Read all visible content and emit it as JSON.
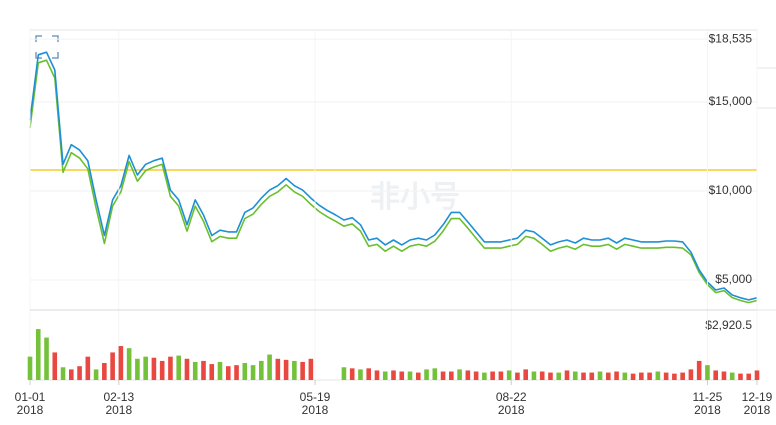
{
  "watermark": "非小号",
  "chart_data": [
    {
      "type": "line",
      "x": [
        "2018-01-01",
        "2018-01-05",
        "2018-01-09",
        "2018-01-13",
        "2018-01-17",
        "2018-01-21",
        "2018-01-25",
        "2018-01-29",
        "2018-02-02",
        "2018-02-06",
        "2018-02-10",
        "2018-02-14",
        "2018-02-18",
        "2018-02-22",
        "2018-02-26",
        "2018-03-02",
        "2018-03-06",
        "2018-03-10",
        "2018-03-14",
        "2018-03-18",
        "2018-03-22",
        "2018-03-26",
        "2018-03-30",
        "2018-04-03",
        "2018-04-07",
        "2018-04-11",
        "2018-04-15",
        "2018-04-19",
        "2018-04-23",
        "2018-04-27",
        "2018-05-01",
        "2018-05-05",
        "2018-05-09",
        "2018-05-13",
        "2018-05-17",
        "2018-05-21",
        "2018-05-25",
        "2018-05-29",
        "2018-06-02",
        "2018-06-06",
        "2018-06-10",
        "2018-06-14",
        "2018-06-18",
        "2018-06-22",
        "2018-06-26",
        "2018-06-30",
        "2018-07-04",
        "2018-07-08",
        "2018-07-12",
        "2018-07-16",
        "2018-07-20",
        "2018-07-24",
        "2018-07-28",
        "2018-08-01",
        "2018-08-05",
        "2018-08-09",
        "2018-08-13",
        "2018-08-17",
        "2018-08-21",
        "2018-08-25",
        "2018-08-29",
        "2018-09-02",
        "2018-09-06",
        "2018-09-10",
        "2018-09-14",
        "2018-09-18",
        "2018-09-22",
        "2018-09-26",
        "2018-09-30",
        "2018-10-04",
        "2018-10-08",
        "2018-10-12",
        "2018-10-16",
        "2018-10-20",
        "2018-10-24",
        "2018-10-28",
        "2018-11-01",
        "2018-11-05",
        "2018-11-09",
        "2018-11-13",
        "2018-11-17",
        "2018-11-21",
        "2018-11-25",
        "2018-11-29",
        "2018-12-03",
        "2018-12-07",
        "2018-12-11",
        "2018-12-15",
        "2018-12-19"
      ],
      "xlim": [
        "2018-01-01",
        "2018-12-19"
      ],
      "series": [
        {
          "color": "#1e8fd5",
          "values": [
            14000,
            17650,
            17800,
            16800,
            11500,
            12600,
            12300,
            11700,
            9500,
            7500,
            9500,
            10300,
            12000,
            10900,
            11500,
            11700,
            11850,
            10050,
            9500,
            8100,
            9500,
            8650,
            7500,
            7800,
            7700,
            7700,
            8800,
            9050,
            9600,
            10050,
            10300,
            10700,
            10300,
            10050,
            9600,
            9200,
            8900,
            8650,
            8370,
            8500,
            8100,
            7250,
            7350,
            6970,
            7250,
            6970,
            7250,
            7350,
            7250,
            7530,
            8100,
            8800,
            8800,
            8260,
            7700,
            7140,
            7140,
            7140,
            7250,
            7350,
            7800,
            7700,
            7350,
            6970,
            7140,
            7250,
            7080,
            7350,
            7250,
            7250,
            7350,
            7080,
            7350,
            7250,
            7140,
            7140,
            7140,
            7190,
            7190,
            7140,
            6570,
            5560,
            4890,
            4440,
            4550,
            4160,
            4000,
            3880,
            4000
          ]
        },
        {
          "color": "#6abf2e",
          "values": [
            13550,
            17200,
            17350,
            16350,
            11050,
            12150,
            11850,
            11250,
            9050,
            7050,
            9150,
            9950,
            11650,
            10550,
            11150,
            11350,
            11500,
            9700,
            9150,
            7750,
            9150,
            8300,
            7150,
            7450,
            7350,
            7350,
            8450,
            8700,
            9250,
            9700,
            9950,
            10350,
            9950,
            9700,
            9250,
            8850,
            8550,
            8300,
            8020,
            8150,
            7750,
            6900,
            7000,
            6620,
            6900,
            6620,
            6900,
            7000,
            6900,
            7180,
            7750,
            8450,
            8450,
            7910,
            7350,
            6790,
            6790,
            6790,
            6900,
            7000,
            7450,
            7350,
            7000,
            6620,
            6790,
            6900,
            6730,
            7000,
            6900,
            6900,
            7000,
            6730,
            7000,
            6900,
            6790,
            6790,
            6790,
            6840,
            6840,
            6790,
            6420,
            5410,
            4740,
            4290,
            4400,
            4010,
            3850,
            3730,
            3850
          ]
        }
      ],
      "hline": {
        "value": 11180,
        "color": "#f5c400"
      },
      "ylim": [
        3315,
        19045
      ],
      "yticks": [
        {
          "value": 5000,
          "label": "$5,000"
        },
        {
          "value": 10000,
          "label": "$10,000"
        },
        {
          "value": 15000,
          "label": "$15,000"
        },
        {
          "value": 18535,
          "label": "$18,535"
        }
      ],
      "grid": true
    },
    {
      "type": "bar",
      "x": [
        "2018-01-01",
        "2018-01-05",
        "2018-01-09",
        "2018-01-13",
        "2018-01-17",
        "2018-01-21",
        "2018-01-25",
        "2018-01-29",
        "2018-02-02",
        "2018-02-06",
        "2018-02-10",
        "2018-02-14",
        "2018-02-18",
        "2018-02-22",
        "2018-02-26",
        "2018-03-02",
        "2018-03-06",
        "2018-03-10",
        "2018-03-14",
        "2018-03-18",
        "2018-03-22",
        "2018-03-26",
        "2018-03-30",
        "2018-04-03",
        "2018-04-07",
        "2018-04-11",
        "2018-04-15",
        "2018-04-19",
        "2018-04-23",
        "2018-04-27",
        "2018-05-01",
        "2018-05-05",
        "2018-05-09",
        "2018-05-13",
        "2018-05-17",
        "2018-05-21",
        "2018-05-25",
        "2018-05-29",
        "2018-06-02",
        "2018-06-06",
        "2018-06-10",
        "2018-06-14",
        "2018-06-18",
        "2018-06-22",
        "2018-06-26",
        "2018-06-30",
        "2018-07-04",
        "2018-07-08",
        "2018-07-12",
        "2018-07-16",
        "2018-07-20",
        "2018-07-24",
        "2018-07-28",
        "2018-08-01",
        "2018-08-05",
        "2018-08-09",
        "2018-08-13",
        "2018-08-17",
        "2018-08-21",
        "2018-08-25",
        "2018-08-29",
        "2018-09-02",
        "2018-09-06",
        "2018-09-10",
        "2018-09-14",
        "2018-09-18",
        "2018-09-22",
        "2018-09-26",
        "2018-09-30",
        "2018-10-04",
        "2018-10-08",
        "2018-10-12",
        "2018-10-16",
        "2018-10-20",
        "2018-10-24",
        "2018-10-28",
        "2018-11-01",
        "2018-11-05",
        "2018-11-09",
        "2018-11-13",
        "2018-11-17",
        "2018-11-21",
        "2018-11-25",
        "2018-11-29",
        "2018-12-03",
        "2018-12-07",
        "2018-12-11",
        "2018-12-15",
        "2018-12-19"
      ],
      "xlim": [
        "2018-01-01",
        "2018-12-19"
      ],
      "values": [
        1100,
        2400,
        2000,
        1300,
        600,
        500,
        650,
        1100,
        500,
        800,
        1300,
        1600,
        1500,
        1000,
        1100,
        1050,
        900,
        1100,
        1150,
        1000,
        850,
        900,
        750,
        850,
        650,
        700,
        800,
        700,
        900,
        1200,
        1000,
        950,
        900,
        850,
        1000,
        null,
        null,
        null,
        600,
        550,
        500,
        550,
        450,
        400,
        450,
        400,
        400,
        350,
        500,
        550,
        400,
        400,
        500,
        450,
        400,
        350,
        400,
        400,
        450,
        350,
        500,
        400,
        400,
        350,
        350,
        450,
        400,
        350,
        350,
        400,
        350,
        400,
        350,
        300,
        350,
        350,
        400,
        350,
        300,
        350,
        500,
        900,
        700,
        450,
        400,
        350,
        300,
        300,
        450
      ],
      "colors": [
        "#73c23a",
        "#73c23a",
        "#73c23a",
        "#e8483f",
        "#73c23a",
        "#e8483f",
        "#e8483f",
        "#e8483f",
        "#73c23a",
        "#e8483f",
        "#e8483f",
        "#e8483f",
        "#73c23a",
        "#73c23a",
        "#73c23a",
        "#e8483f",
        "#e8483f",
        "#e8483f",
        "#73c23a",
        "#e8483f",
        "#73c23a",
        "#e8483f",
        "#e8483f",
        "#73c23a",
        "#e8483f",
        "#e8483f",
        "#73c23a",
        "#73c23a",
        "#73c23a",
        "#73c23a",
        "#e8483f",
        "#e8483f",
        "#73c23a",
        "#e8483f",
        "#e8483f",
        null,
        null,
        null,
        "#73c23a",
        "#e8483f",
        "#73c23a",
        "#e8483f",
        "#e8483f",
        "#73c23a",
        "#e8483f",
        "#e8483f",
        "#73c23a",
        "#e8483f",
        "#73c23a",
        "#73c23a",
        "#e8483f",
        "#e8483f",
        "#73c23a",
        "#e8483f",
        "#e8483f",
        "#73c23a",
        "#e8483f",
        "#e8483f",
        "#73c23a",
        "#e8483f",
        "#e8483f",
        "#73c23a",
        "#e8483f",
        "#e8483f",
        "#73c23a",
        "#e8483f",
        "#73c23a",
        "#e8483f",
        "#e8483f",
        "#73c23a",
        "#e8483f",
        "#e8483f",
        "#73c23a",
        "#e8483f",
        "#e8483f",
        "#e8483f",
        "#73c23a",
        "#e8483f",
        "#e8483f",
        "#e8483f",
        "#e8483f",
        "#e8483f",
        "#73c23a",
        "#e8483f",
        "#e8483f",
        "#73c23a",
        "#e8483f",
        "#e8483f",
        "#e8483f"
      ],
      "ylim": [
        0,
        3300
      ],
      "yticks": [
        {
          "value": 2920.5,
          "label": "$2,920.5"
        }
      ],
      "xticks": [
        {
          "value": "2018-01-01",
          "label": [
            "01-01",
            "2018"
          ]
        },
        {
          "value": "2018-02-13",
          "label": [
            "02-13",
            "2018"
          ]
        },
        {
          "value": "2018-05-19",
          "label": [
            "05-19",
            "2018"
          ]
        },
        {
          "value": "2018-08-22",
          "label": [
            "08-22",
            "2018"
          ]
        },
        {
          "value": "2018-11-25",
          "label": [
            "11-25",
            "2018"
          ]
        },
        {
          "value": "2018-12-19",
          "label": [
            "12-19",
            "2018"
          ]
        }
      ]
    }
  ]
}
